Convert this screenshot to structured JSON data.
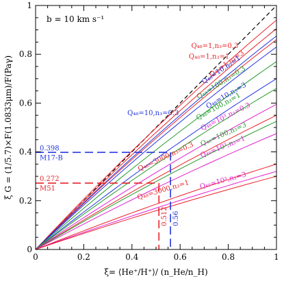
{
  "chart_data": {
    "type": "line",
    "xlabel": "ξ= ⟨He⁺/H⁺⟩/ (n_He/n_H)",
    "ylabel": "ξ  G =  (1/5.7)×F(1.0833μm)/F(Paγ)",
    "xlim": [
      0,
      1
    ],
    "ylim": [
      0,
      1
    ],
    "x_ticks": [
      "0",
      "0.2",
      "0.4",
      "0.6",
      "0.8",
      "1"
    ],
    "y_ticks": [
      "0",
      "0.2",
      "0.4",
      "0.6",
      "0.8",
      "1"
    ],
    "grid": false,
    "annotation": "b = 10 km s⁻¹",
    "reference_line": {
      "x": [
        0,
        1
      ],
      "y": [
        0,
        1
      ],
      "style": "dashed",
      "color": "#000000"
    },
    "series": [
      {
        "label": "Q₄₈=1,n₃=0.3",
        "color": "#e8222a",
        "x": [
          0,
          1
        ],
        "y": [
          0,
          0.94
        ]
      },
      {
        "label": "Q₄₈=1,n₃=1",
        "color": "#e8222a",
        "x": [
          0,
          1
        ],
        "y": [
          0,
          0.905
        ]
      },
      {
        "label": "Q₄₈=1,n₃=3",
        "color": "#e8222a",
        "x": [
          0,
          1
        ],
        "y": [
          0,
          0.86
        ]
      },
      {
        "label": "Q₄₈=10,n₃=0.3",
        "color": "#2233dd",
        "x": [
          0,
          1
        ],
        "y": [
          0,
          0.875
        ]
      },
      {
        "label": "Q₄₈=10,n₃=1",
        "color": "#2233dd",
        "x": [
          0,
          1
        ],
        "y": [
          0,
          0.83
        ]
      },
      {
        "label": "Q₄₈=10,n₃=3",
        "color": "#2233dd",
        "x": [
          0,
          1
        ],
        "y": [
          0,
          0.7
        ]
      },
      {
        "label": "Q₄₈=100,n₃=0.3",
        "color": "#22992a",
        "x": [
          0,
          1
        ],
        "y": [
          0,
          0.77
        ]
      },
      {
        "label": "Q₄₈=100,n₃=1",
        "color": "#22992a",
        "x": [
          0,
          1
        ],
        "y": [
          0,
          0.66
        ]
      },
      {
        "label": "Q₄₈=10³,n₃=0.3",
        "color": "#e020d0",
        "x": [
          0,
          1
        ],
        "y": [
          0,
          0.595
        ]
      },
      {
        "label": "Q₄₈=3000,n₃=0.3",
        "color": "#e8222a",
        "x": [
          0,
          1
        ],
        "y": [
          0,
          0.55
        ]
      },
      {
        "label": "Q₄₈=100,n₃=3",
        "color": "#22992a",
        "x": [
          0,
          1
        ],
        "y": [
          0,
          0.525
        ]
      },
      {
        "label": "Q₄₈=10³,n₃=1",
        "color": "#e020d0",
        "x": [
          0,
          1
        ],
        "y": [
          0,
          0.475
        ]
      },
      {
        "label": "Q₄₈=3000,n₃=1",
        "color": "#e8222a",
        "x": [
          0,
          1
        ],
        "y": [
          0,
          0.35
        ]
      },
      {
        "label": "Q₄₈=10³,n₃=3",
        "color": "#e020d0",
        "x": [
          0,
          1
        ],
        "y": [
          0,
          0.32
        ]
      },
      {
        "label": "",
        "color": "#e8222a",
        "x": [
          0,
          1
        ],
        "y": [
          0,
          0.3
        ]
      }
    ],
    "markers": [
      {
        "object": "M17-B",
        "G": "0.398",
        "xi": "0.56",
        "g_value": 0.398,
        "xi_value": 0.56,
        "color": "#2233dd"
      },
      {
        "object": "M51",
        "G": "0.272",
        "xi": "0.512",
        "g_value": 0.272,
        "xi_value": 0.512,
        "color": "#e8222a"
      }
    ]
  }
}
